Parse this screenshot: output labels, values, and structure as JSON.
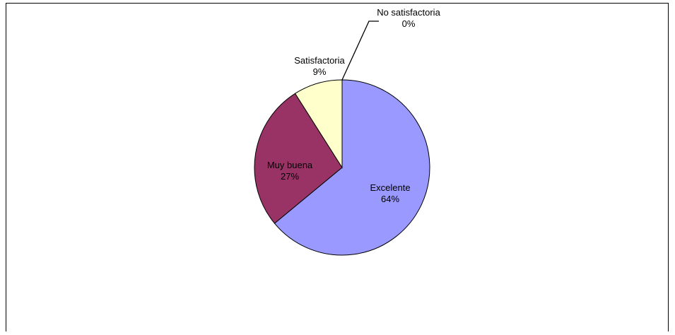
{
  "chart_data": {
    "type": "pie",
    "title": "",
    "slices": [
      {
        "label": "Excelente",
        "percent_label": "64%",
        "value": 64,
        "color": "#9999ff"
      },
      {
        "label": "Muy buena",
        "percent_label": "27%",
        "value": 27,
        "color": "#993366"
      },
      {
        "label": "Satisfactoria",
        "percent_label": "9%",
        "value": 9,
        "color": "#ffffcc"
      },
      {
        "label": "No satisfactoria",
        "percent_label": "0%",
        "value": 0,
        "color": "#ccffff"
      }
    ],
    "start": "12 o'clock",
    "direction": "clockwise",
    "legend": "none"
  }
}
